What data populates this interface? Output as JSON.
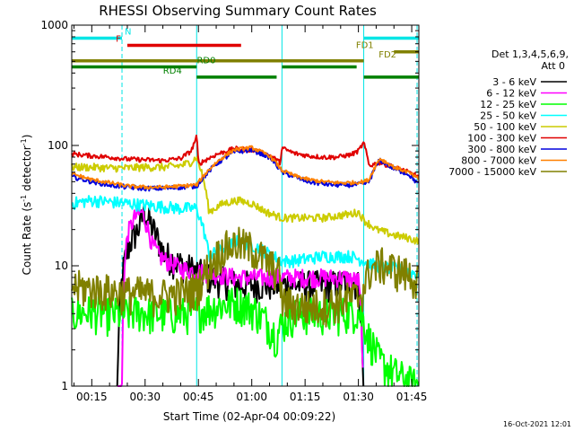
{
  "chart_data": {
    "type": "line",
    "title": "RHESSI Observing Summary Count Rates",
    "xlabel": "Start Time (02-Apr-04 00:09:22)",
    "ylabel_main": "Count Rate (s",
    "ylabel_sup1": "-1",
    "ylabel_mid": " detector",
    "ylabel_sup2": "-1",
    "ylabel_end": ")",
    "y_scale": "log",
    "ylim": [
      1,
      1000
    ],
    "xlim_minutes": [
      9.3667,
      107.0
    ],
    "x_ticks": [
      {
        "minutes": 15,
        "label": "00:15"
      },
      {
        "minutes": 30,
        "label": "00:30"
      },
      {
        "minutes": 45,
        "label": "00:45"
      },
      {
        "minutes": 60,
        "label": "01:00"
      },
      {
        "minutes": 75,
        "label": "01:15"
      },
      {
        "minutes": 90,
        "label": "01:30"
      },
      {
        "minutes": 105,
        "label": "01:45"
      }
    ],
    "y_ticks": [
      {
        "value": 1,
        "label": "1"
      },
      {
        "value": 10,
        "label": "10"
      },
      {
        "value": 100,
        "label": "100"
      },
      {
        "value": 1000,
        "label": "1000"
      }
    ],
    "legend_header": [
      "Det 1,3,4,5,6,9,",
      "Att 0"
    ],
    "legend_placement": "right",
    "footer_date": "16-Oct-2021 12:01",
    "flag_labels": [
      "N",
      "F",
      "FD1",
      "FD2",
      "RD0",
      "RD4"
    ],
    "flags": [
      {
        "label": "N",
        "color": "#00e5e5",
        "y": 780,
        "segments": [
          [
            9.4,
            23.5
          ],
          [
            91.5,
            107
          ]
        ],
        "label_at": 25.2
      },
      {
        "label": "F",
        "color": "#e00000",
        "y": 680,
        "segments": [
          [
            25.0,
            57.0
          ]
        ],
        "label_at": 22.5
      },
      {
        "label": "FD1",
        "color": "#808000",
        "y": 600,
        "segments": [
          [
            100.0,
            107
          ]
        ],
        "label_at": 91.8
      },
      {
        "label": "FD2",
        "color": "#808000",
        "y": 505,
        "segments": [
          [
            9.4,
            91.5
          ]
        ],
        "label_at": 98.2
      },
      {
        "label": "RD0",
        "color": "#008000",
        "y": 450,
        "segments": [
          [
            9.4,
            44.5
          ],
          [
            68.5,
            89.5
          ]
        ],
        "label_at": 47.2
      },
      {
        "label": "RD4",
        "color": "#008000",
        "y": 370,
        "segments": [
          [
            44.5,
            67.0
          ],
          [
            91.5,
            107
          ]
        ],
        "label_at": 37.7
      }
    ],
    "vlines_minutes": [
      23.5,
      44.5,
      68.5,
      91.5,
      106.5
    ],
    "series": [
      {
        "name": "3 - 6 keV",
        "color": "#000000",
        "x": [
          9.4,
          17,
          22,
          24,
          26,
          28,
          30,
          31,
          33,
          35,
          38,
          41,
          44.5,
          48,
          52,
          56,
          60,
          64,
          68.5,
          72,
          76,
          80,
          84,
          88,
          90,
          91.5
        ],
        "y": [
          0,
          0,
          0,
          10,
          16,
          20,
          28,
          24,
          18,
          13,
          11,
          10,
          9,
          8,
          7.5,
          7,
          7,
          7,
          7,
          7,
          7,
          7,
          7,
          7.5,
          7,
          0
        ],
        "noise": 0.1
      },
      {
        "name": "6 - 12 keV",
        "color": "#ff00ff",
        "x": [
          22,
          23.5,
          25,
          27,
          29,
          30,
          32,
          34,
          36,
          40,
          44.5,
          50,
          56,
          62,
          68.5,
          74,
          80,
          86,
          90,
          91.5
        ],
        "y": [
          0,
          1,
          18,
          25,
          28,
          24,
          15,
          12,
          11,
          9.5,
          9,
          8.5,
          8,
          8,
          8,
          8,
          8,
          8,
          7.5,
          0
        ],
        "noise": 0.06
      },
      {
        "name": "12 - 25 keV",
        "color": "#00ff00",
        "x": [
          9.4,
          15,
          20,
          24,
          28,
          32,
          36,
          40,
          44,
          48,
          52,
          56,
          60,
          64,
          67,
          68.5,
          72,
          76,
          80,
          84,
          88,
          90,
          91.5,
          93,
          96,
          100,
          104,
          107
        ],
        "y": [
          4,
          4.2,
          4,
          4,
          4.2,
          4,
          4,
          4,
          4.2,
          4.5,
          4.8,
          5,
          4.5,
          3.5,
          2.6,
          3.3,
          4,
          4,
          4,
          4,
          4.2,
          4.2,
          3.5,
          2.5,
          1.6,
          1.3,
          1.1,
          1
        ],
        "noise": 0.12
      },
      {
        "name": "25 - 50 keV",
        "color": "#00ffff",
        "x": [
          9.4,
          15,
          20,
          25,
          30,
          35,
          40,
          44.5,
          48,
          52,
          56,
          60,
          64,
          68.5,
          72,
          76,
          80,
          84,
          88,
          91.5,
          95,
          100,
          104,
          107
        ],
        "y": [
          33,
          35,
          34,
          33,
          32,
          31,
          30,
          30,
          12,
          14,
          16,
          15,
          13,
          11,
          11,
          11.5,
          12,
          12,
          12,
          11,
          10,
          9.5,
          9,
          8.5
        ],
        "noise": 0.04
      },
      {
        "name": "50 - 100 keV",
        "color": "#cccc00",
        "x": [
          9.4,
          15,
          20,
          25,
          30,
          35,
          40,
          43,
          44.5,
          48,
          52,
          56,
          60,
          64,
          68.5,
          72,
          76,
          80,
          84,
          88,
          90,
          91.5,
          95,
          100,
          104,
          107
        ],
        "y": [
          66,
          66,
          65,
          65,
          66,
          66,
          68,
          73,
          80,
          28,
          33,
          35,
          33,
          28,
          25,
          25,
          25,
          25,
          26,
          27,
          28,
          24,
          20,
          18,
          17,
          16
        ],
        "noise": 0.025
      },
      {
        "name": "100 - 300 keV",
        "color": "#e00000",
        "x": [
          9.4,
          15,
          20,
          25,
          30,
          35,
          40,
          43,
          44.5,
          45,
          50,
          55,
          60,
          65,
          68,
          68.5,
          72,
          76,
          80,
          84,
          88,
          90,
          91.5,
          93,
          96,
          100,
          104,
          107
        ],
        "y": [
          85,
          82,
          80,
          77,
          76,
          75,
          78,
          90,
          118,
          70,
          84,
          94,
          92,
          83,
          72,
          95,
          86,
          82,
          80,
          80,
          84,
          90,
          105,
          68,
          72,
          66,
          60,
          55
        ],
        "noise": 0.015
      },
      {
        "name": "300 - 800 keV",
        "color": "#0000dd",
        "x": [
          9.4,
          15,
          20,
          25,
          30,
          35,
          40,
          44.5,
          50,
          55,
          60,
          65,
          68.5,
          72,
          76,
          80,
          84,
          88,
          91.5,
          93,
          96,
          100,
          104,
          107
        ],
        "y": [
          55,
          50,
          47,
          45,
          44,
          44,
          45,
          46,
          70,
          88,
          92,
          80,
          60,
          55,
          50,
          48,
          47,
          47,
          48,
          50,
          76,
          64,
          58,
          47
        ],
        "noise": 0.015
      },
      {
        "name": "800 - 7000 keV",
        "color": "#ff8000",
        "x": [
          9.4,
          15,
          20,
          25,
          30,
          35,
          40,
          44.5,
          50,
          55,
          60,
          65,
          68.5,
          72,
          76,
          80,
          84,
          88,
          91.5,
          93,
          96,
          100,
          104,
          107
        ],
        "y": [
          58,
          52,
          49,
          46,
          45,
          45,
          46,
          47,
          72,
          92,
          96,
          82,
          62,
          56,
          52,
          50,
          49,
          49,
          50,
          52,
          78,
          66,
          60,
          52
        ],
        "noise": 0.012
      },
      {
        "name": "7000 - 15000 keV",
        "color": "#808000",
        "x": [
          9.4,
          15,
          20,
          24,
          28,
          32,
          36,
          40,
          44.5,
          48,
          52,
          56,
          60,
          64,
          68,
          68.5,
          72,
          76,
          80,
          84,
          88,
          90,
          91.5,
          93,
          96,
          100,
          104,
          107
        ],
        "y": [
          6.8,
          6.5,
          6.2,
          6,
          6,
          5.8,
          5.8,
          6,
          6.5,
          10,
          14,
          15.5,
          14,
          11,
          8.5,
          5,
          4.8,
          4.6,
          4.8,
          5,
          5.5,
          5.5,
          6.5,
          9,
          10.5,
          9.5,
          8.5,
          7.5
        ],
        "noise": 0.12
      }
    ]
  }
}
